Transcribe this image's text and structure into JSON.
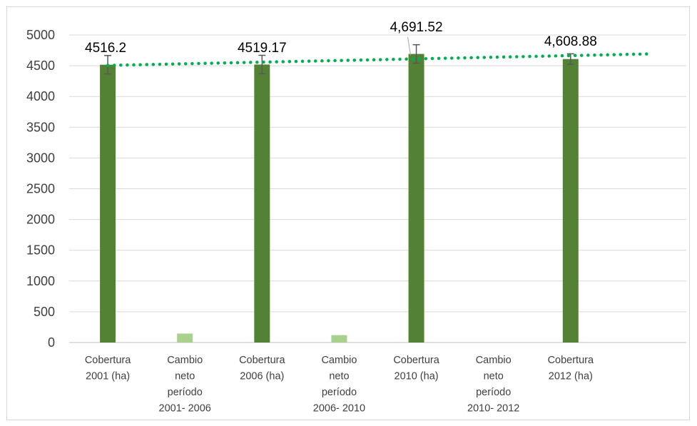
{
  "chart_data": {
    "type": "bar",
    "categories": [
      [
        "Cobertura",
        "2001 (ha)"
      ],
      [
        "Cambio",
        "neto",
        "período",
        "2001- 2006"
      ],
      [
        "Cobertura",
        "2006 (ha)"
      ],
      [
        "Cambio",
        "neto",
        "período",
        "2006- 2010"
      ],
      [
        "Cobertura",
        "2010 (ha)"
      ],
      [
        "Cambio",
        "neto",
        "período",
        "2010- 2012"
      ],
      [
        "Cobertura",
        "2012 (ha)"
      ],
      [
        ""
      ]
    ],
    "values": [
      4516.2,
      145,
      4519.17,
      120,
      4691.52,
      0,
      4608.88,
      null
    ],
    "bar_kinds": [
      "cover",
      "change",
      "cover",
      "change",
      "cover",
      "change",
      "cover",
      "none"
    ],
    "data_labels": [
      "4516.2",
      "",
      "4519.17",
      "",
      "4,691.52",
      "",
      "4,608.88",
      ""
    ],
    "error_bars": [
      150,
      null,
      150,
      null,
      150,
      null,
      85,
      null
    ],
    "trendline": {
      "type": "linear",
      "style": "dotted",
      "color": "#00b050",
      "start": 4505,
      "end": 4692
    },
    "ylim": [
      0,
      5000
    ],
    "yticks": [
      "0",
      "500",
      "1000",
      "1500",
      "2000",
      "2500",
      "3000",
      "3500",
      "4000",
      "4500",
      "5000"
    ],
    "grid": true,
    "legend": "none",
    "colors": {
      "cover": "#548235",
      "change": "#a9d18e",
      "error": "#595959",
      "grid": "#d9d9d9",
      "axis": "#bfbfbf"
    }
  }
}
